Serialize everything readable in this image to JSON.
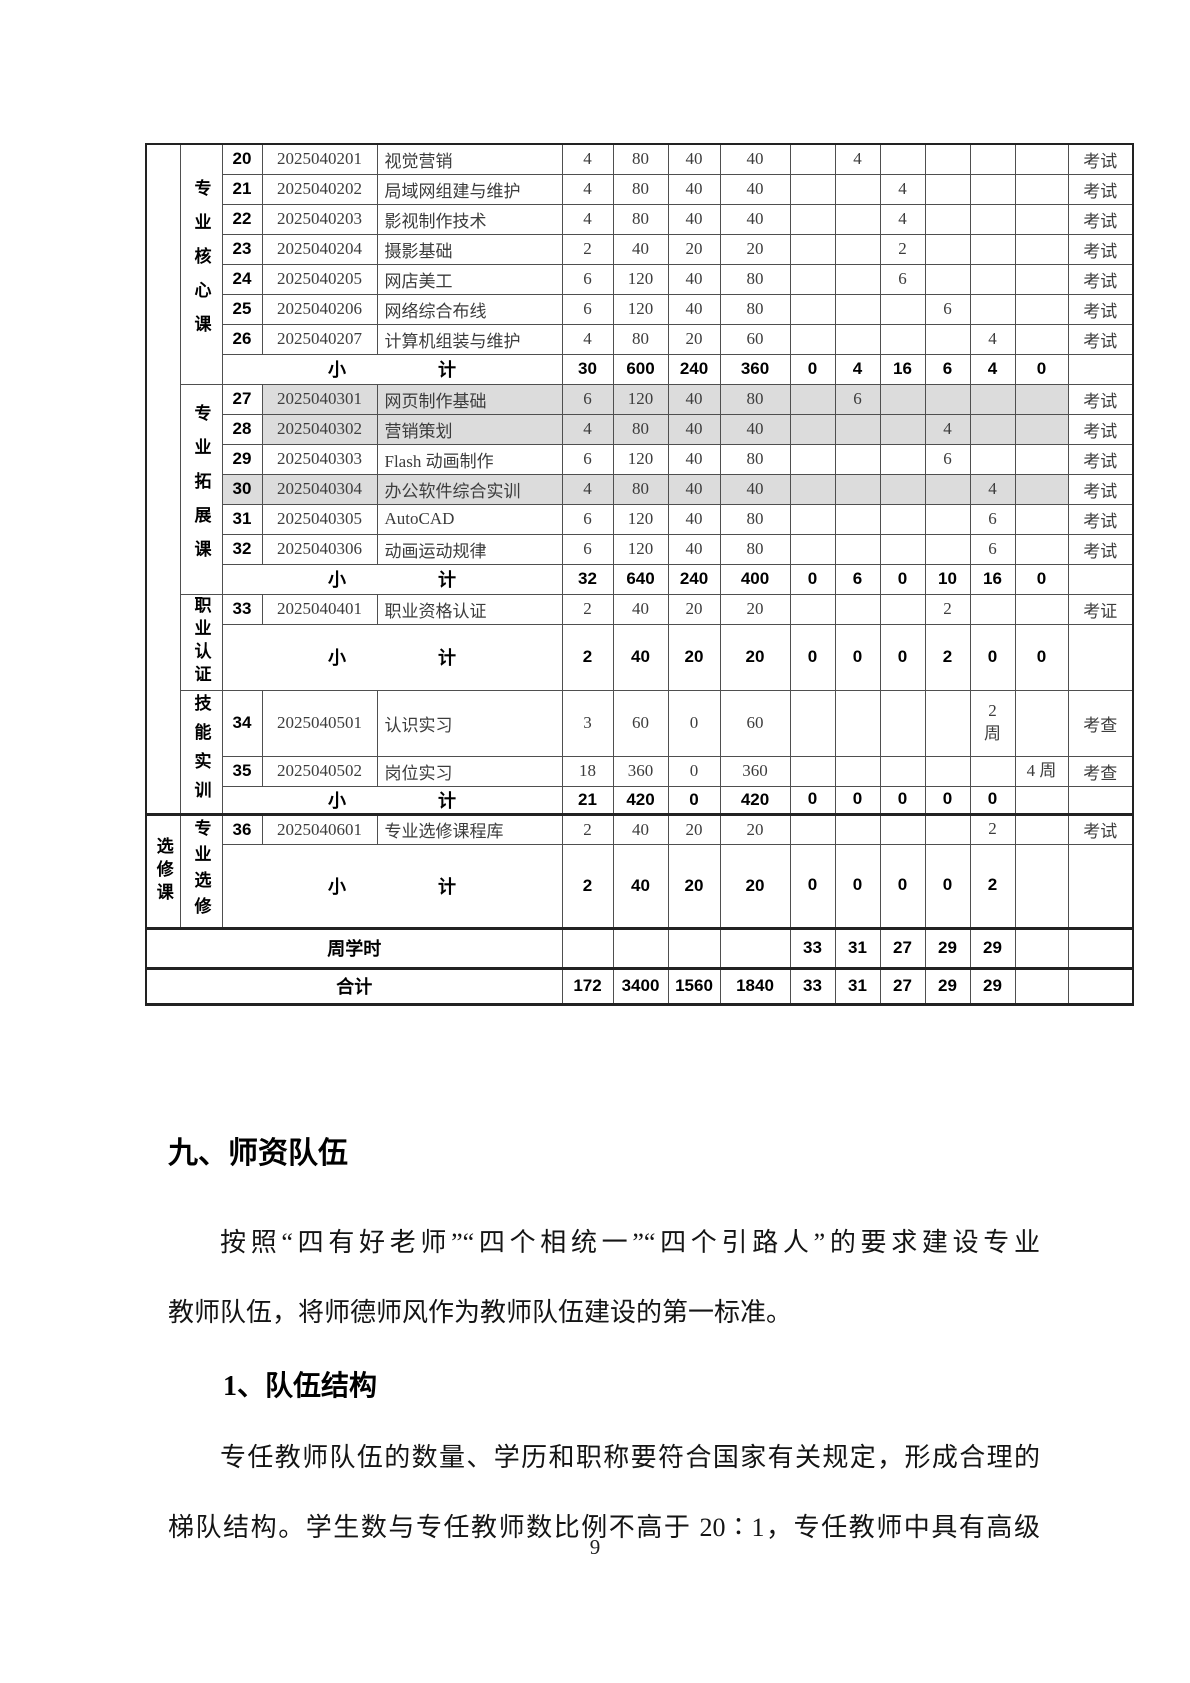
{
  "colors": {
    "row_highlight": "#dcdcdc",
    "border": "#4f4f4f",
    "ink": "#1a1a1a"
  },
  "table": {
    "outer_groups": [
      {
        "label": "",
        "section_indexes": [
          0,
          1,
          2,
          3
        ]
      },
      {
        "label": "选修课",
        "section_indexes": [
          4
        ]
      }
    ],
    "sections": [
      {
        "category": "专业核心课",
        "rows": [
          {
            "num": "20",
            "code": "2025040201",
            "name": "视觉营销",
            "credits": "4",
            "total": "80",
            "theory": "40",
            "practice": "40",
            "sems": [
              "",
              "4",
              "",
              "",
              "",
              ""
            ],
            "exam": "考试",
            "shade": "none"
          },
          {
            "num": "21",
            "code": "2025040202",
            "name": "局域网组建与维护",
            "credits": "4",
            "total": "80",
            "theory": "40",
            "practice": "40",
            "sems": [
              "",
              "",
              "4",
              "",
              "",
              ""
            ],
            "exam": "考试",
            "shade": "none"
          },
          {
            "num": "22",
            "code": "2025040203",
            "name": "影视制作技术",
            "credits": "4",
            "total": "80",
            "theory": "40",
            "practice": "40",
            "sems": [
              "",
              "",
              "4",
              "",
              "",
              ""
            ],
            "exam": "考试",
            "shade": "none"
          },
          {
            "num": "23",
            "code": "2025040204",
            "name": "摄影基础",
            "credits": "2",
            "total": "40",
            "theory": "20",
            "practice": "20",
            "sems": [
              "",
              "",
              "2",
              "",
              "",
              ""
            ],
            "exam": "考试",
            "shade": "none"
          },
          {
            "num": "24",
            "code": "2025040205",
            "name": "网店美工",
            "credits": "6",
            "total": "120",
            "theory": "40",
            "practice": "80",
            "sems": [
              "",
              "",
              "6",
              "",
              "",
              ""
            ],
            "exam": "考试",
            "shade": "none"
          },
          {
            "num": "25",
            "code": "2025040206",
            "name": "网络综合布线",
            "credits": "6",
            "total": "120",
            "theory": "40",
            "practice": "80",
            "sems": [
              "",
              "",
              "",
              "6",
              "",
              ""
            ],
            "exam": "考试",
            "shade": "none"
          },
          {
            "num": "26",
            "code": "2025040207",
            "name": "计算机组装与维护",
            "credits": "4",
            "total": "80",
            "theory": "20",
            "practice": "60",
            "sems": [
              "",
              "",
              "",
              "",
              "4",
              ""
            ],
            "exam": "考试",
            "shade": "none"
          }
        ],
        "subtotal": {
          "label": "小计",
          "credits": "30",
          "total": "600",
          "theory": "240",
          "practice": "360",
          "sems": [
            "0",
            "4",
            "16",
            "6",
            "4",
            "0"
          ],
          "exam": ""
        }
      },
      {
        "category": "专业拓展课",
        "rows": [
          {
            "num": "27",
            "code": "2025040301",
            "name": "网页制作基础",
            "credits": "6",
            "total": "120",
            "theory": "40",
            "practice": "80",
            "sems": [
              "",
              "6",
              "",
              "",
              "",
              ""
            ],
            "exam": "考试",
            "shade": "code"
          },
          {
            "num": "28",
            "code": "2025040302",
            "name": "营销策划",
            "credits": "4",
            "total": "80",
            "theory": "40",
            "practice": "40",
            "sems": [
              "",
              "",
              "",
              "4",
              "",
              ""
            ],
            "exam": "考试",
            "shade": "code"
          },
          {
            "num": "29",
            "code": "2025040303",
            "name": "Flash 动画制作",
            "credits": "6",
            "total": "120",
            "theory": "40",
            "practice": "80",
            "sems": [
              "",
              "",
              "",
              "6",
              "",
              ""
            ],
            "exam": "考试",
            "shade": "none"
          },
          {
            "num": "30",
            "code": "2025040304",
            "name": "办公软件综合实训",
            "credits": "4",
            "total": "80",
            "theory": "40",
            "practice": "40",
            "sems": [
              "",
              "",
              "",
              "",
              "4",
              ""
            ],
            "exam": "考试",
            "shade": "num"
          },
          {
            "num": "31",
            "code": "2025040305",
            "name": "AutoCAD",
            "credits": "6",
            "total": "120",
            "theory": "40",
            "practice": "80",
            "sems": [
              "",
              "",
              "",
              "",
              "6",
              ""
            ],
            "exam": "考试",
            "shade": "none"
          },
          {
            "num": "32",
            "code": "2025040306",
            "name": "动画运动规律",
            "credits": "6",
            "total": "120",
            "theory": "40",
            "practice": "80",
            "sems": [
              "",
              "",
              "",
              "",
              "6",
              ""
            ],
            "exam": "考试",
            "shade": "none"
          }
        ],
        "subtotal": {
          "label": "小计",
          "credits": "32",
          "total": "640",
          "theory": "240",
          "practice": "400",
          "sems": [
            "0",
            "6",
            "0",
            "10",
            "16",
            "0"
          ],
          "exam": ""
        }
      },
      {
        "category": "职业认证",
        "rows": [
          {
            "num": "33",
            "code": "2025040401",
            "name": "职业资格认证",
            "credits": "2",
            "total": "40",
            "theory": "20",
            "practice": "20",
            "sems": [
              "",
              "",
              "",
              "2",
              "",
              ""
            ],
            "exam": "考证",
            "shade": "none"
          }
        ],
        "subtotal": {
          "label": "小计",
          "credits": "2",
          "total": "40",
          "theory": "20",
          "practice": "20",
          "sems": [
            "0",
            "0",
            "0",
            "2",
            "0",
            "0"
          ],
          "exam": ""
        }
      },
      {
        "category": "技能实训",
        "rows": [
          {
            "num": "34",
            "code": "2025040501",
            "name": "认识实习",
            "credits": "3",
            "total": "60",
            "theory": "0",
            "practice": "60",
            "sems": [
              "",
              "",
              "",
              "",
              "2\n周",
              ""
            ],
            "exam": "考查",
            "shade": "none"
          },
          {
            "num": "35",
            "code": "2025040502",
            "name": "岗位实习",
            "credits": "18",
            "total": "360",
            "theory": "0",
            "practice": "360",
            "sems": [
              "",
              "",
              "",
              "",
              "",
              "4 周"
            ],
            "exam": "考查",
            "shade": "none"
          }
        ],
        "subtotal": {
          "label": "小计",
          "credits": "21",
          "total": "420",
          "theory": "0",
          "practice": "420",
          "sems": [
            "0",
            "0",
            "0",
            "0",
            "0",
            ""
          ],
          "exam": ""
        }
      },
      {
        "category": "专业选修",
        "rows": [
          {
            "num": "36",
            "code": "2025040601",
            "name": "专业选修课程库",
            "credits": "2",
            "total": "40",
            "theory": "20",
            "practice": "20",
            "sems": [
              "",
              "",
              "",
              "",
              "2",
              ""
            ],
            "exam": "考试",
            "shade": "none"
          }
        ],
        "subtotal": {
          "label": "小计",
          "credits": "2",
          "total": "40",
          "theory": "20",
          "practice": "20",
          "sems": [
            "0",
            "0",
            "0",
            "0",
            "2",
            ""
          ],
          "exam": ""
        }
      }
    ],
    "footer_rows": [
      {
        "label": "周学时",
        "credits": "",
        "total": "",
        "theory": "",
        "practice": "",
        "sems": [
          "33",
          "31",
          "27",
          "29",
          "29",
          ""
        ],
        "exam": ""
      },
      {
        "label": "合计",
        "credits": "172",
        "total": "3400",
        "theory": "1560",
        "practice": "1840",
        "sems": [
          "33",
          "31",
          "27",
          "29",
          "29",
          ""
        ],
        "exam": ""
      }
    ]
  },
  "text": {
    "heading1": "九、师资队伍",
    "para1_line1": "按照“四有好老师”“四个相统一”“四个引路人”的要求建设专业",
    "para1_line2": "教师队伍，将师德师风作为教师队伍建设的第一标准。",
    "heading2": "1、队伍结构",
    "para2_line1": "专任教师队伍的数量、学历和职称要符合国家有关规定，形成合理的",
    "para2_line2": "梯队结构。学生数与专任教师数比例不高于 20∶1，专任教师中具有高级",
    "page_number": "9"
  }
}
